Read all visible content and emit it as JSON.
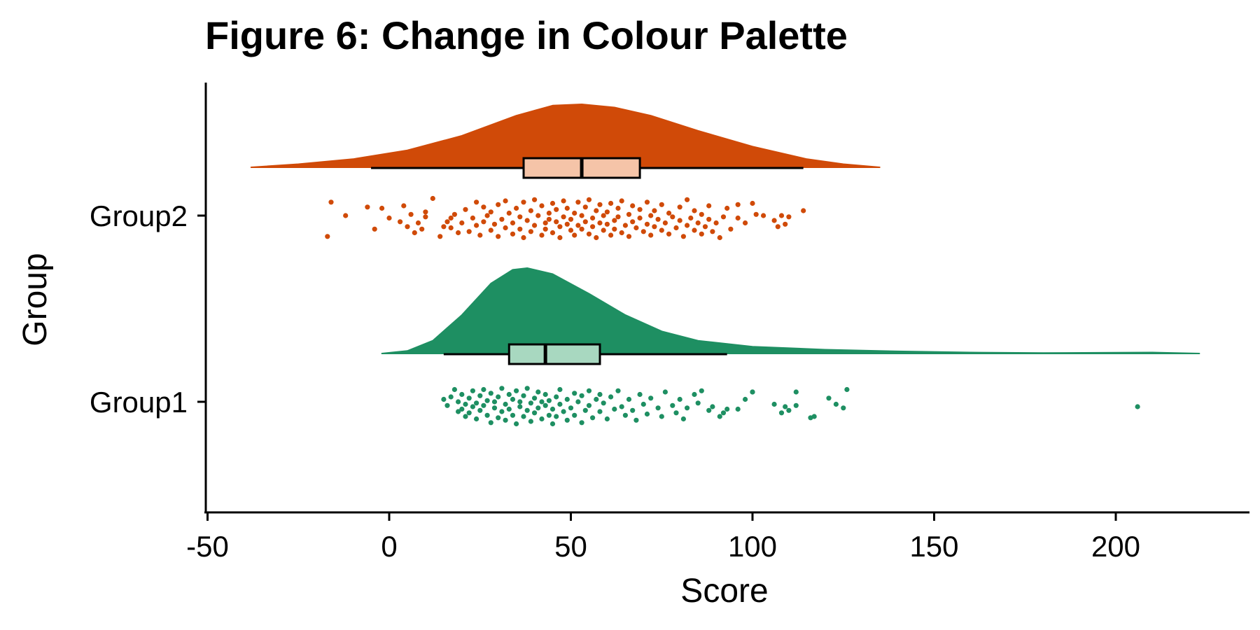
{
  "chart_data": {
    "type": "raincloud",
    "title": "Figure 6: Change in Colour Palette",
    "xlabel": "Score",
    "ylabel": "Group",
    "xlim": [
      -50,
      235
    ],
    "x_ticks": [
      -50,
      0,
      50,
      100,
      150,
      200
    ],
    "x_tick_labels": [
      "-50",
      "0",
      "50",
      "100",
      "150",
      "200"
    ],
    "categories": [
      "Group1",
      "Group2"
    ],
    "grid": false,
    "legend": "none",
    "series": [
      {
        "name": "Group2",
        "color": "#d04a08",
        "box_fill": "#f5c4a8",
        "density_range": [
          -38,
          135
        ],
        "density_curve": [
          [
            -38,
            0.0
          ],
          [
            -25,
            0.05
          ],
          [
            -10,
            0.13
          ],
          [
            5,
            0.27
          ],
          [
            20,
            0.5
          ],
          [
            35,
            0.82
          ],
          [
            45,
            0.98
          ],
          [
            53,
            1.0
          ],
          [
            62,
            0.95
          ],
          [
            72,
            0.82
          ],
          [
            85,
            0.58
          ],
          [
            100,
            0.33
          ],
          [
            115,
            0.13
          ],
          [
            125,
            0.05
          ],
          [
            135,
            0.0
          ]
        ],
        "box": {
          "whisker_low": -5,
          "q1": 37,
          "median": 53,
          "q3": 69,
          "whisker_high": 114
        },
        "points": [
          [
            -17,
            0.85
          ],
          [
            -16,
            -0.55
          ],
          [
            -12,
            0.0
          ],
          [
            -6,
            -0.35
          ],
          [
            -4,
            0.55
          ],
          [
            -2,
            -0.3
          ],
          [
            0,
            0.1
          ],
          [
            3,
            0.25
          ],
          [
            4,
            -0.4
          ],
          [
            5,
            0.45
          ],
          [
            6,
            -0.05
          ],
          [
            7,
            0.7
          ],
          [
            8,
            0.3
          ],
          [
            9,
            0.55
          ],
          [
            10,
            -0.15
          ],
          [
            10,
            0.05
          ],
          [
            12,
            -0.7
          ],
          [
            14,
            0.85
          ],
          [
            15,
            0.45
          ],
          [
            16,
            0.25
          ],
          [
            17,
            0.1
          ],
          [
            17,
            0.5
          ],
          [
            18,
            -0.05
          ],
          [
            19,
            0.7
          ],
          [
            20,
            0.3
          ],
          [
            21,
            -0.25
          ],
          [
            22,
            0.65
          ],
          [
            23,
            0.1
          ],
          [
            24,
            -0.55
          ],
          [
            24,
            0.4
          ],
          [
            25,
            0.8
          ],
          [
            26,
            0.25
          ],
          [
            26,
            -0.35
          ],
          [
            27,
            0.0
          ],
          [
            28,
            0.6
          ],
          [
            28,
            -0.15
          ],
          [
            29,
            0.35
          ],
          [
            30,
            0.85
          ],
          [
            30,
            -0.45
          ],
          [
            31,
            0.15
          ],
          [
            32,
            0.5
          ],
          [
            32,
            -0.6
          ],
          [
            33,
            -0.1
          ],
          [
            34,
            0.75
          ],
          [
            34,
            0.3
          ],
          [
            35,
            -0.3
          ],
          [
            36,
            0.55
          ],
          [
            36,
            0.05
          ],
          [
            37,
            -0.55
          ],
          [
            37,
            0.9
          ],
          [
            38,
            0.2
          ],
          [
            39,
            -0.2
          ],
          [
            39,
            0.65
          ],
          [
            40,
            0.4
          ],
          [
            40,
            -0.65
          ],
          [
            41,
            0.0
          ],
          [
            42,
            0.8
          ],
          [
            42,
            -0.4
          ],
          [
            43,
            0.3
          ],
          [
            43,
            0.55
          ],
          [
            44,
            -0.1
          ],
          [
            44,
            0.15
          ],
          [
            45,
            -0.5
          ],
          [
            45,
            0.7
          ],
          [
            46,
            0.25
          ],
          [
            46,
            -0.25
          ],
          [
            47,
            0.45
          ],
          [
            47,
            0.9
          ],
          [
            48,
            -0.6
          ],
          [
            48,
            0.05
          ],
          [
            49,
            0.35
          ],
          [
            49,
            -0.3
          ],
          [
            50,
            0.6
          ],
          [
            50,
            0.15
          ],
          [
            51,
            -0.1
          ],
          [
            51,
            0.8
          ],
          [
            52,
            0.4
          ],
          [
            52,
            -0.55
          ],
          [
            53,
            0.0
          ],
          [
            53,
            0.55
          ],
          [
            54,
            -0.35
          ],
          [
            54,
            0.25
          ],
          [
            55,
            0.75
          ],
          [
            55,
            -0.65
          ],
          [
            56,
            0.1
          ],
          [
            56,
            0.45
          ],
          [
            57,
            -0.2
          ],
          [
            57,
            0.9
          ],
          [
            58,
            0.3
          ],
          [
            58,
            -0.45
          ],
          [
            59,
            0.6
          ],
          [
            59,
            0.0
          ],
          [
            60,
            -0.15
          ],
          [
            60,
            0.35
          ],
          [
            61,
            0.8
          ],
          [
            61,
            -0.5
          ],
          [
            62,
            0.2
          ],
          [
            62,
            0.55
          ],
          [
            63,
            -0.3
          ],
          [
            63,
            0.05
          ],
          [
            64,
            0.7
          ],
          [
            64,
            -0.6
          ],
          [
            65,
            0.4
          ],
          [
            66,
            -0.05
          ],
          [
            66,
            0.85
          ],
          [
            67,
            0.25
          ],
          [
            67,
            -0.4
          ],
          [
            68,
            0.5
          ],
          [
            69,
            0.1
          ],
          [
            69,
            -0.25
          ],
          [
            70,
            0.65
          ],
          [
            71,
            -0.55
          ],
          [
            71,
            0.35
          ],
          [
            72,
            0.0
          ],
          [
            72,
            0.8
          ],
          [
            73,
            -0.2
          ],
          [
            73,
            0.45
          ],
          [
            74,
            0.15
          ],
          [
            75,
            -0.45
          ],
          [
            75,
            0.6
          ],
          [
            76,
            0.3
          ],
          [
            77,
            -0.1
          ],
          [
            77,
            0.75
          ],
          [
            78,
            0.05
          ],
          [
            79,
            0.5
          ],
          [
            80,
            -0.35
          ],
          [
            80,
            0.2
          ],
          [
            81,
            0.85
          ],
          [
            82,
            -0.65
          ],
          [
            82,
            0.4
          ],
          [
            83,
            0.1
          ],
          [
            84,
            0.6
          ],
          [
            84,
            -0.2
          ],
          [
            85,
            0.3
          ],
          [
            86,
            0.75
          ],
          [
            86,
            -0.05
          ],
          [
            87,
            0.45
          ],
          [
            88,
            0.15
          ],
          [
            88,
            -0.4
          ],
          [
            89,
            0.65
          ],
          [
            90,
            0.3
          ],
          [
            91,
            0.9
          ],
          [
            92,
            0.05
          ],
          [
            93,
            -0.3
          ],
          [
            94,
            0.55
          ],
          [
            96,
            -0.45
          ],
          [
            96,
            0.1
          ],
          [
            98,
            0.3
          ],
          [
            100,
            -0.5
          ],
          [
            101,
            -0.05
          ],
          [
            103,
            0.0
          ],
          [
            106,
            0.2
          ],
          [
            107,
            0.45
          ],
          [
            108,
            0.0
          ],
          [
            109,
            0.35
          ],
          [
            110,
            0.05
          ],
          [
            114,
            -0.2
          ]
        ]
      },
      {
        "name": "Group1",
        "color": "#1e8f62",
        "box_fill": "#a8d8c0",
        "density_range": [
          -2,
          223
        ],
        "density_curve": [
          [
            -2,
            0.0
          ],
          [
            5,
            0.03
          ],
          [
            12,
            0.15
          ],
          [
            20,
            0.45
          ],
          [
            28,
            0.82
          ],
          [
            34,
            0.98
          ],
          [
            38,
            1.0
          ],
          [
            45,
            0.93
          ],
          [
            55,
            0.7
          ],
          [
            65,
            0.45
          ],
          [
            75,
            0.26
          ],
          [
            85,
            0.15
          ],
          [
            100,
            0.08
          ],
          [
            120,
            0.045
          ],
          [
            140,
            0.025
          ],
          [
            160,
            0.012
          ],
          [
            180,
            0.006
          ],
          [
            200,
            0.01
          ],
          [
            210,
            0.012
          ],
          [
            223,
            0.0
          ]
        ],
        "box": {
          "whisker_low": 15,
          "q1": 33,
          "median": 43,
          "q3": 58,
          "whisker_high": 93
        },
        "points": [
          [
            15,
            -0.1
          ],
          [
            16,
            0.15
          ],
          [
            17,
            -0.2
          ],
          [
            18,
            -0.5
          ],
          [
            19,
            0.4
          ],
          [
            19,
            0.0
          ],
          [
            20,
            0.3
          ],
          [
            20,
            -0.3
          ],
          [
            21,
            0.6
          ],
          [
            21,
            0.1
          ],
          [
            22,
            -0.15
          ],
          [
            22,
            0.45
          ],
          [
            23,
            0.2
          ],
          [
            23,
            -0.45
          ],
          [
            24,
            0.05
          ],
          [
            24,
            0.7
          ],
          [
            25,
            -0.25
          ],
          [
            25,
            0.35
          ],
          [
            26,
            -0.5
          ],
          [
            26,
            0.15
          ],
          [
            27,
            0.55
          ],
          [
            27,
            -0.05
          ],
          [
            28,
            0.85
          ],
          [
            28,
            -0.35
          ],
          [
            29,
            0.25
          ],
          [
            29,
            0.0
          ],
          [
            30,
            0.65
          ],
          [
            30,
            -0.2
          ],
          [
            31,
            0.4
          ],
          [
            31,
            -0.55
          ],
          [
            32,
            0.1
          ],
          [
            32,
            0.75
          ],
          [
            33,
            -0.3
          ],
          [
            33,
            0.3
          ],
          [
            34,
            0.55
          ],
          [
            34,
            -0.1
          ],
          [
            35,
            0.9
          ],
          [
            35,
            -0.45
          ],
          [
            36,
            0.2
          ],
          [
            36,
            0.0
          ],
          [
            37,
            0.6
          ],
          [
            37,
            -0.25
          ],
          [
            38,
            0.35
          ],
          [
            38,
            -0.55
          ],
          [
            39,
            0.05
          ],
          [
            39,
            0.8
          ],
          [
            40,
            -0.15
          ],
          [
            40,
            0.45
          ],
          [
            41,
            0.25
          ],
          [
            41,
            -0.4
          ],
          [
            42,
            0.7
          ],
          [
            42,
            0.0
          ],
          [
            43,
            0.15
          ],
          [
            43,
            -0.3
          ],
          [
            44,
            0.55
          ],
          [
            44,
            -0.05
          ],
          [
            45,
            0.9
          ],
          [
            45,
            0.3
          ],
          [
            46,
            -0.2
          ],
          [
            46,
            0.6
          ],
          [
            47,
            0.1
          ],
          [
            47,
            -0.5
          ],
          [
            48,
            0.4
          ],
          [
            49,
            -0.1
          ],
          [
            49,
            0.75
          ],
          [
            50,
            0.25
          ],
          [
            51,
            -0.35
          ],
          [
            51,
            0.55
          ],
          [
            52,
            0.0
          ],
          [
            53,
            0.85
          ],
          [
            53,
            -0.25
          ],
          [
            54,
            0.35
          ],
          [
            55,
            -0.45
          ],
          [
            55,
            0.15
          ],
          [
            56,
            0.65
          ],
          [
            57,
            -0.1
          ],
          [
            58,
            0.4
          ],
          [
            58,
            -0.3
          ],
          [
            59,
            0.05
          ],
          [
            60,
            0.7
          ],
          [
            61,
            -0.2
          ],
          [
            62,
            0.3
          ],
          [
            63,
            -0.45
          ],
          [
            64,
            0.2
          ],
          [
            65,
            0.55
          ],
          [
            66,
            -0.1
          ],
          [
            67,
            0.35
          ],
          [
            68,
            0.75
          ],
          [
            69,
            -0.3
          ],
          [
            70,
            0.1
          ],
          [
            71,
            0.5
          ],
          [
            72,
            -0.15
          ],
          [
            74,
            0.25
          ],
          [
            75,
            0.6
          ],
          [
            76,
            -0.4
          ],
          [
            78,
            0.15
          ],
          [
            79,
            0.45
          ],
          [
            80,
            -0.1
          ],
          [
            81,
            0.7
          ],
          [
            82,
            0.25
          ],
          [
            84,
            -0.3
          ],
          [
            85,
            0.05
          ],
          [
            86,
            -0.45
          ],
          [
            88,
            0.35
          ],
          [
            89,
            0.2
          ],
          [
            91,
            0.6
          ],
          [
            92,
            0.45
          ],
          [
            93,
            0.3
          ],
          [
            96,
            0.3
          ],
          [
            98,
            -0.1
          ],
          [
            100,
            -0.4
          ],
          [
            106,
            0.1
          ],
          [
            108,
            0.45
          ],
          [
            109,
            0.2
          ],
          [
            110,
            0.35
          ],
          [
            112,
            0.15
          ],
          [
            116,
            0.65
          ],
          [
            121,
            -0.15
          ],
          [
            123,
            0.1
          ],
          [
            125,
            0.25
          ]
        ],
        "outliers": [
          [
            100,
            -0.4
          ],
          [
            112,
            -0.4
          ],
          [
            117,
            0.6
          ],
          [
            126,
            -0.5
          ],
          [
            206,
            0.2
          ]
        ]
      }
    ]
  }
}
